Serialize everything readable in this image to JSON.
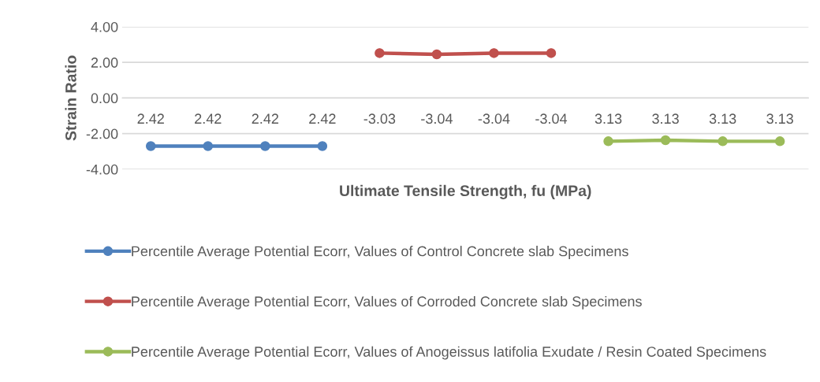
{
  "chart_data": {
    "type": "line",
    "xlabel": "Ultimate Tensile Strength, fu (MPa)",
    "ylabel": "Strain Ratio",
    "categories": [
      "2.42",
      "2.42",
      "2.42",
      "2.42",
      "-3.03",
      "-3.04",
      "-3.04",
      "-3.04",
      "3.13",
      "3.13",
      "3.13",
      "3.13"
    ],
    "series": [
      {
        "name": "Percentile Average Potential Ecorr, Values of Control Concrete slab Specimens",
        "color": "#4f81bd",
        "values": [
          -2.7,
          -2.7,
          -2.7,
          -2.7,
          null,
          null,
          null,
          null,
          null,
          null,
          null,
          null
        ]
      },
      {
        "name": "Percentile Average Potential Ecorr, Values of Corroded Concrete slab Specimens",
        "color": "#c0504d",
        "values": [
          null,
          null,
          null,
          null,
          2.52,
          2.45,
          2.52,
          2.52,
          null,
          null,
          null,
          null
        ]
      },
      {
        "name": "Percentile Average Potential Ecorr, Values of Anogeissus latifolia Exudate / Resin Coated Specimens",
        "color": "#9bbb59",
        "values": [
          null,
          null,
          null,
          null,
          null,
          null,
          null,
          null,
          -2.43,
          -2.37,
          -2.43,
          -2.43
        ]
      }
    ],
    "ylim": [
      -4,
      4
    ],
    "yticks": [
      {
        "value": -4,
        "label": "-4.00"
      },
      {
        "value": -2,
        "label": "-2.00"
      },
      {
        "value": 0,
        "label": "0.00"
      },
      {
        "value": 2,
        "label": "2.00"
      },
      {
        "value": 4,
        "label": "4.00"
      }
    ],
    "grid": "y",
    "legend": "bottom",
    "marker": "circle",
    "line_style": "solid"
  }
}
